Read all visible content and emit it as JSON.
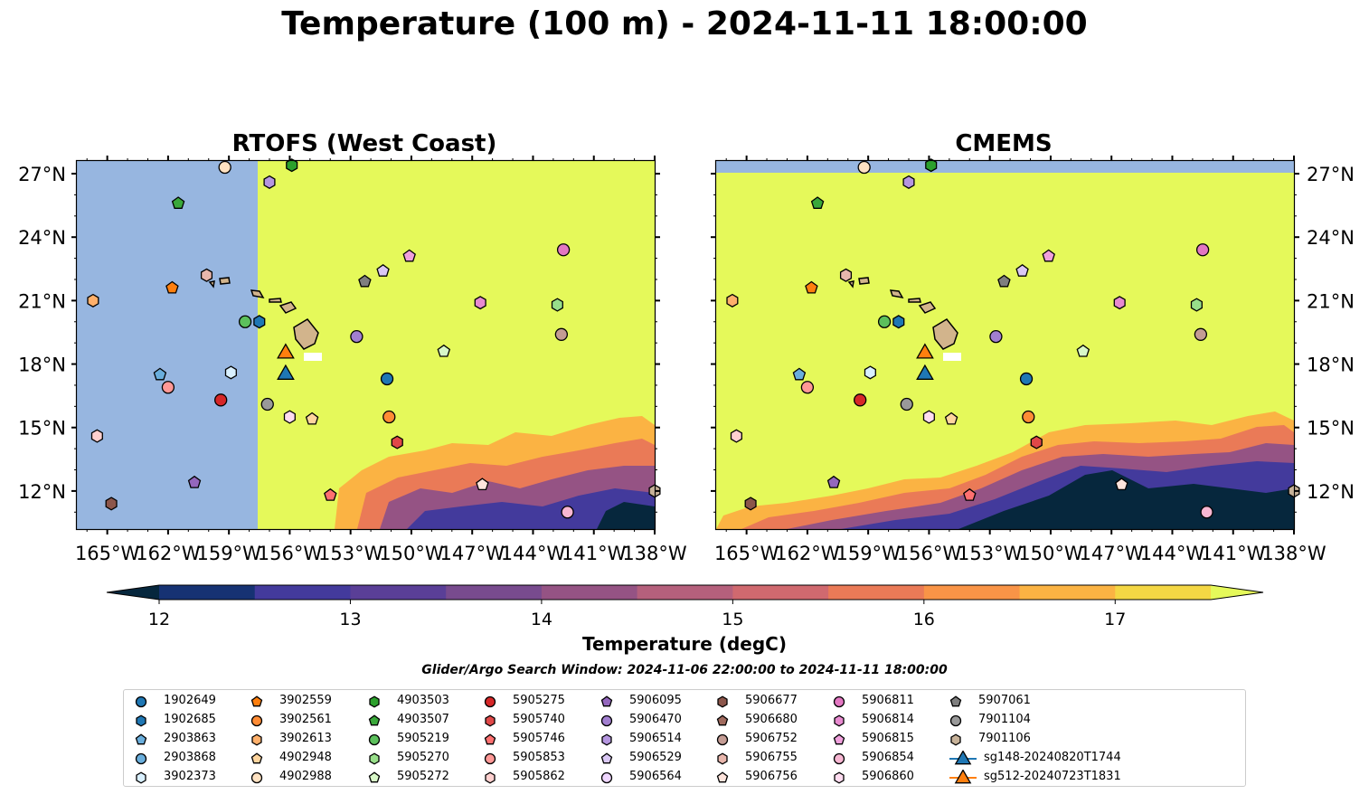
{
  "suptitle": "Temperature (100 m) - 2024-11-11 18:00:00",
  "panels": [
    {
      "title": "RTOFS (West Coast)"
    },
    {
      "title": "CMEMS"
    }
  ],
  "lat_ticks": [
    "27°N",
    "24°N",
    "21°N",
    "18°N",
    "15°N",
    "12°N"
  ],
  "lon_ticks": [
    "165°W",
    "162°W",
    "159°W",
    "156°W",
    "153°W",
    "150°W",
    "147°W",
    "144°W",
    "141°W",
    "138°W"
  ],
  "colorbar": {
    "label": "Temperature (degC)",
    "tick_labels": [
      "12",
      "13",
      "14",
      "15",
      "16",
      "17"
    ],
    "colors": [
      "#06273d",
      "#163273",
      "#433a9c",
      "#5a3f97",
      "#784b8e",
      "#955384",
      "#b5607c",
      "#d0696f",
      "#ea7a57",
      "#f99447",
      "#fbb343",
      "#f4d744",
      "#e5f95a"
    ]
  },
  "search_window": "Glider/Argo Search Window: 2024-11-06 22:00:00 to 2024-11-11 18:00:00",
  "legend": [
    {
      "name": "1902649",
      "marker": "circle",
      "color": "#1f77b4"
    },
    {
      "name": "1902685",
      "marker": "hexagon",
      "color": "#1f77b4"
    },
    {
      "name": "2903863",
      "marker": "pentagon",
      "color": "#6aaedc"
    },
    {
      "name": "2903868",
      "marker": "circle",
      "color": "#6aaedc"
    },
    {
      "name": "3902373",
      "marker": "hexagon",
      "color": "#d9f0ff"
    },
    {
      "name": "3902559",
      "marker": "pentagon",
      "color": "#ff7f0e"
    },
    {
      "name": "3902561",
      "marker": "circle",
      "color": "#ff8c35"
    },
    {
      "name": "3902613",
      "marker": "hexagon",
      "color": "#ffb06b"
    },
    {
      "name": "4902948",
      "marker": "pentagon",
      "color": "#ffd59e"
    },
    {
      "name": "4902988",
      "marker": "circle",
      "color": "#ffe2c2"
    },
    {
      "name": "4903503",
      "marker": "hexagon",
      "color": "#2ca02c"
    },
    {
      "name": "4903507",
      "marker": "pentagon",
      "color": "#3aa83a"
    },
    {
      "name": "5905219",
      "marker": "circle",
      "color": "#5cc05c"
    },
    {
      "name": "5905270",
      "marker": "hexagon",
      "color": "#98df8a"
    },
    {
      "name": "5905272",
      "marker": "pentagon",
      "color": "#d8f8c8"
    },
    {
      "name": "5905275",
      "marker": "circle",
      "color": "#d62728"
    },
    {
      "name": "5905740",
      "marker": "hexagon",
      "color": "#e04848"
    },
    {
      "name": "5905746",
      "marker": "pentagon",
      "color": "#ff7070"
    },
    {
      "name": "5905853",
      "marker": "circle",
      "color": "#ff9896"
    },
    {
      "name": "5905862",
      "marker": "hexagon",
      "color": "#ffd0cf"
    },
    {
      "name": "5906095",
      "marker": "pentagon",
      "color": "#9467bd"
    },
    {
      "name": "5906470",
      "marker": "circle",
      "color": "#a27fd0"
    },
    {
      "name": "5906514",
      "marker": "hexagon",
      "color": "#b596e0"
    },
    {
      "name": "5906529",
      "marker": "pentagon",
      "color": "#dac8f5"
    },
    {
      "name": "5906564",
      "marker": "circle",
      "color": "#efd6ff"
    },
    {
      "name": "5906677",
      "marker": "hexagon",
      "color": "#8c564b"
    },
    {
      "name": "5906680",
      "marker": "pentagon",
      "color": "#a06a5e"
    },
    {
      "name": "5906752",
      "marker": "circle",
      "color": "#c49c94"
    },
    {
      "name": "5906755",
      "marker": "hexagon",
      "color": "#e8b6ac"
    },
    {
      "name": "5906756",
      "marker": "pentagon",
      "color": "#ffe4dc"
    },
    {
      "name": "5906811",
      "marker": "circle",
      "color": "#e377c2"
    },
    {
      "name": "5906814",
      "marker": "hexagon",
      "color": "#e88ad0"
    },
    {
      "name": "5906815",
      "marker": "pentagon",
      "color": "#f0a0dc"
    },
    {
      "name": "5906854",
      "marker": "circle",
      "color": "#f7b6d2"
    },
    {
      "name": "5906860",
      "marker": "hexagon",
      "color": "#ffdcf0"
    },
    {
      "name": "5907061",
      "marker": "pentagon",
      "color": "#7f7f7f"
    },
    {
      "name": "7901104",
      "marker": "circle",
      "color": "#999999"
    },
    {
      "name": "7901106",
      "marker": "hexagon",
      "color": "#c7b299"
    },
    {
      "name": "sg148-20240820T1744",
      "marker": "triangle",
      "color": "#1f77b4"
    },
    {
      "name": "sg512-20240723T1831",
      "marker": "triangle",
      "color": "#ff7f0e"
    }
  ],
  "chart_data": {
    "type": "map",
    "xlabel": "",
    "ylabel": "",
    "xlim": [
      -166.5,
      -138
    ],
    "ylim": [
      10.2,
      27.6
    ],
    "floats": [
      {
        "id": "4902988",
        "marker": "circle",
        "color": "#ffe2c2",
        "lon": -159.2,
        "lat": 27.3
      },
      {
        "id": "4903503",
        "marker": "hexagon",
        "color": "#2ca02c",
        "lon": -155.9,
        "lat": 27.4
      },
      {
        "id": "5906514",
        "marker": "hexagon",
        "color": "#b596e0",
        "lon": -157.0,
        "lat": 26.6
      },
      {
        "id": "4903507",
        "marker": "pentagon",
        "color": "#3aa83a",
        "lon": -161.5,
        "lat": 25.6
      },
      {
        "id": "5906811",
        "marker": "circle",
        "color": "#e377c2",
        "lon": -142.5,
        "lat": 23.4
      },
      {
        "id": "5906815",
        "marker": "pentagon",
        "color": "#f0a0dc",
        "lon": -150.1,
        "lat": 23.1
      },
      {
        "id": "5906529",
        "marker": "pentagon",
        "color": "#dac8f5",
        "lon": -151.4,
        "lat": 22.4
      },
      {
        "id": "5907061",
        "marker": "pentagon",
        "color": "#7f7f7f",
        "lon": -152.3,
        "lat": 21.9
      },
      {
        "id": "5906755",
        "marker": "hexagon",
        "color": "#e8b6ac",
        "lon": -160.1,
        "lat": 22.2
      },
      {
        "id": "3902559",
        "marker": "pentagon",
        "color": "#ff7f0e",
        "lon": -161.8,
        "lat": 21.6
      },
      {
        "id": "3902613",
        "marker": "hexagon",
        "color": "#ffb06b",
        "lon": -165.7,
        "lat": 21.0
      },
      {
        "id": "5906814",
        "marker": "hexagon",
        "color": "#e88ad0",
        "lon": -146.6,
        "lat": 20.9
      },
      {
        "id": "5905270",
        "marker": "hexagon",
        "color": "#98df8a",
        "lon": -142.8,
        "lat": 20.8
      },
      {
        "id": "5905219",
        "marker": "circle",
        "color": "#5cc05c",
        "lon": -158.2,
        "lat": 20.0
      },
      {
        "id": "1902685",
        "marker": "hexagon",
        "color": "#1f77b4",
        "lon": -157.5,
        "lat": 20.0
      },
      {
        "id": "5906470",
        "marker": "circle",
        "color": "#a27fd0",
        "lon": -152.7,
        "lat": 19.3
      },
      {
        "id": "5906752",
        "marker": "circle",
        "color": "#c49c94",
        "lon": -142.6,
        "lat": 19.4
      },
      {
        "id": "5905272",
        "marker": "pentagon",
        "color": "#d8f8c8",
        "lon": -148.4,
        "lat": 18.6
      },
      {
        "id": "3902373",
        "marker": "hexagon",
        "color": "#d9f0ff",
        "lon": -158.9,
        "lat": 17.6
      },
      {
        "id": "2903863",
        "marker": "pentagon",
        "color": "#6aaedc",
        "lon": -162.4,
        "lat": 17.5
      },
      {
        "id": "1902649",
        "marker": "circle",
        "color": "#1f77b4",
        "lon": -151.2,
        "lat": 17.3
      },
      {
        "id": "5905853",
        "marker": "circle",
        "color": "#ff9896",
        "lon": -162.0,
        "lat": 16.9
      },
      {
        "id": "5905275",
        "marker": "circle",
        "color": "#d62728",
        "lon": -159.4,
        "lat": 16.3
      },
      {
        "id": "7901104",
        "marker": "circle",
        "color": "#999999",
        "lon": -157.1,
        "lat": 16.1
      },
      {
        "id": "5906860",
        "marker": "hexagon",
        "color": "#ffdcf0",
        "lon": -156.0,
        "lat": 15.5
      },
      {
        "id": "4902948",
        "marker": "pentagon",
        "color": "#ffd59e",
        "lon": -154.9,
        "lat": 15.4
      },
      {
        "id": "3902561",
        "marker": "circle",
        "color": "#ff8c35",
        "lon": -151.1,
        "lat": 15.5
      },
      {
        "id": "5905862",
        "marker": "hexagon",
        "color": "#ffd0cf",
        "lon": -165.5,
        "lat": 14.6
      },
      {
        "id": "5905740",
        "marker": "hexagon",
        "color": "#e04848",
        "lon": -150.7,
        "lat": 14.3
      },
      {
        "id": "5906095",
        "marker": "pentagon",
        "color": "#9467bd",
        "lon": -160.7,
        "lat": 12.4
      },
      {
        "id": "5906756",
        "marker": "pentagon",
        "color": "#ffe4dc",
        "lon": -146.5,
        "lat": 12.3
      },
      {
        "id": "5905746",
        "marker": "pentagon",
        "color": "#ff7070",
        "lon": -154.0,
        "lat": 11.8
      },
      {
        "id": "5906677",
        "marker": "hexagon",
        "color": "#8c564b",
        "lon": -164.8,
        "lat": 11.4
      },
      {
        "id": "5906854",
        "marker": "circle",
        "color": "#f7b6d2",
        "lon": -142.3,
        "lat": 11.0
      },
      {
        "id": "7901106",
        "marker": "hexagon",
        "color": "#c7b299",
        "lon": -138.0,
        "lat": 12.0
      }
    ],
    "gliders": [
      {
        "id": "sg512-20240723T1831",
        "color": "#ff7f0e",
        "lon": -156.2,
        "lat": 18.5
      },
      {
        "id": "sg148-20240820T1744",
        "color": "#1f77b4",
        "lon": -156.2,
        "lat": 17.5
      }
    ]
  }
}
